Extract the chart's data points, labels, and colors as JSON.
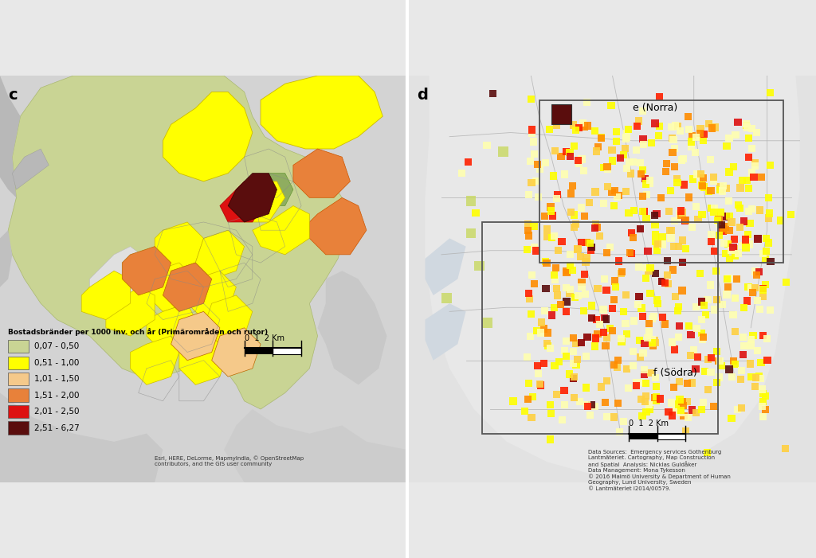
{
  "panel_c_label": "c",
  "panel_d_label": "d",
  "legend_title": "Bostadsbränder per 1000 inv. och år (Primärområden och rutor)",
  "legend_items": [
    {
      "label": "0,07 - 0,50",
      "color": "#c9d494"
    },
    {
      "label": "0,51 - 1,00",
      "color": "#ffff00"
    },
    {
      "label": "1,01 - 1,50",
      "color": "#f5c98a"
    },
    {
      "label": "1,51 - 2,00",
      "color": "#e8813a"
    },
    {
      "label": "2,01 - 2,50",
      "color": "#dd1111"
    },
    {
      "label": "2,51 - 6,27",
      "color": "#5a0d0d"
    }
  ],
  "source_text_c": "Esri, HERE, DeLorme, MapmyIndia, © OpenStreetMap\ncontributors, and the GIS user community",
  "source_text_d": "Data Sources:  Emergency services Gothenburg\nLantmäteriet. Cartography, Map Construction\nand Spatial  Analysis: Nicklas Guldåker\nData Management: Mona Tykesson\n© 2016 Malmö University & Department of Human\nGeography, Lund University, Sweden\n© Lantmäteriet I2014/00579.",
  "label_e": "e (Norra)",
  "label_f": "f (Södra)",
  "bg_gray": "#d4d4d4",
  "map_bg_outside": "#d0d0d0",
  "green_bg": "#c9d494",
  "water_color": "#c8d0dc",
  "white_area": "#e8e8e8",
  "sq_colors": [
    "#ffffb0",
    "#ffff00",
    "#ffd040",
    "#ff8c00",
    "#ff2000",
    "#dd1111",
    "#8b0000",
    "#5a0d0d"
  ],
  "sq_weights": [
    0.3,
    0.25,
    0.18,
    0.12,
    0.07,
    0.04,
    0.025,
    0.015
  ]
}
